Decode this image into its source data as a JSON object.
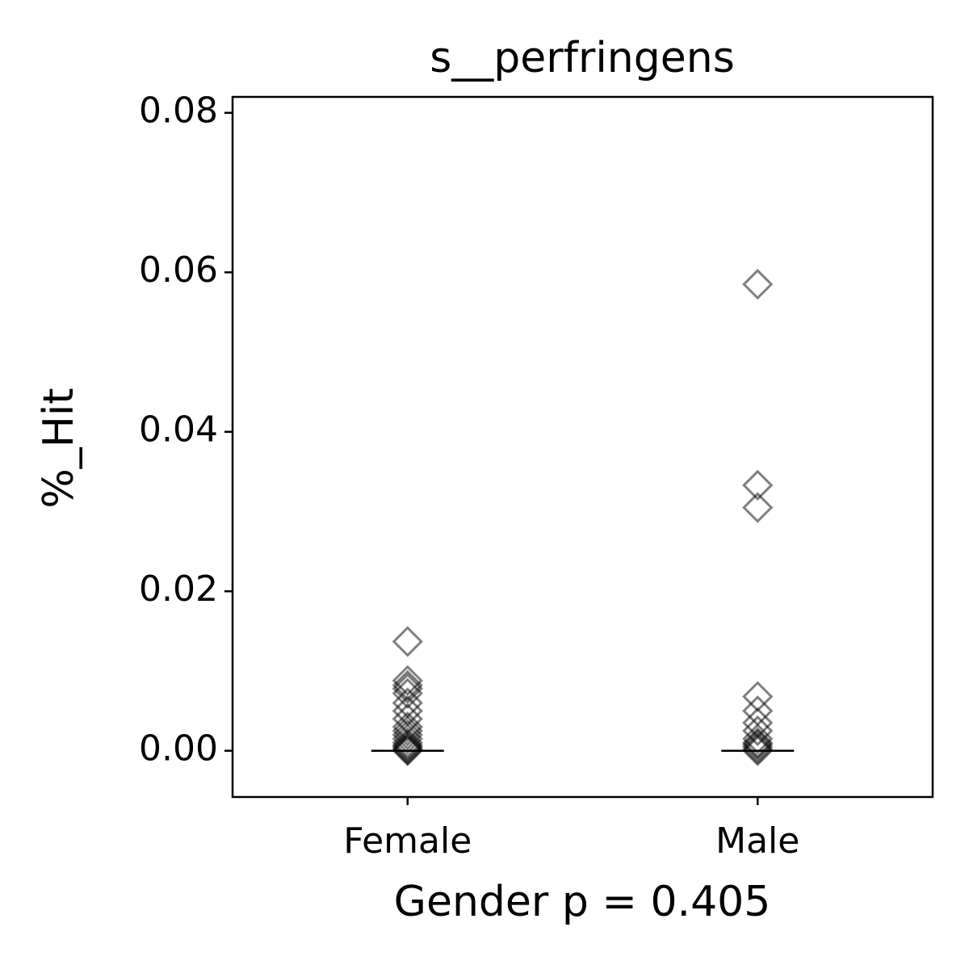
{
  "chart_data": {
    "type": "strip",
    "title": "s__perfringens",
    "y_label": "%_Hit",
    "x_label": "Gender p = 0.405",
    "categories": [
      "Female",
      "Male"
    ],
    "values": [
      [
        0.0137,
        0.0088,
        0.0082,
        0.0078,
        0.0072,
        0.006,
        0.005,
        0.004,
        0.003,
        0.0025,
        0.002,
        0.0015,
        0.001,
        0.0007,
        0.0005,
        0.0003,
        0.0001,
        0
      ],
      [
        0.0585,
        0.0333,
        0.0305,
        0.0068,
        0.005,
        0.0035,
        0.0025,
        0.0015,
        0.001,
        0.0008,
        0.0005,
        0.0002,
        0
      ]
    ],
    "medians": [
      0,
      0
    ],
    "marker": "diamond",
    "color": "#000000",
    "opacity": 0.5,
    "ylim": [
      -0.0058,
      0.082
    ],
    "yticks": [
      {
        "value": 0,
        "label": "0.00"
      },
      {
        "value": 0.02,
        "label": "0.02"
      },
      {
        "value": 0.04,
        "label": "0.04"
      },
      {
        "value": 0.06,
        "label": "0.06"
      },
      {
        "value": 0.08,
        "label": "0.08"
      }
    ],
    "grid": false
  }
}
